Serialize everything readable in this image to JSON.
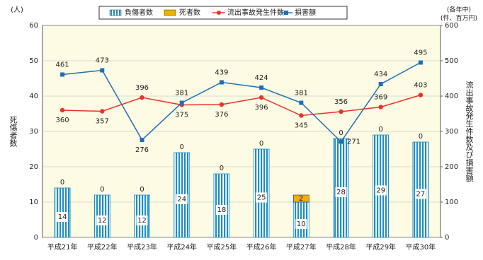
{
  "chart_data": {
    "type": "bar-line",
    "y_label": "死傷者数",
    "y_unit": "(人)",
    "y2_label": "流出事故発生件数及び損害額",
    "y2_unit_1": "(各年中)",
    "y2_unit_2": "(件、百万円)",
    "categories": [
      "平成21年",
      "平成22年",
      "平成23年",
      "平成24年",
      "平成25年",
      "平成26年",
      "平成27年",
      "平成28年",
      "平成29年",
      "平成30年"
    ],
    "series": [
      {
        "name": "負傷者数",
        "type": "bar",
        "color": "#1f8fc4",
        "values": [
          14,
          12,
          12,
          24,
          18,
          25,
          10,
          28,
          29,
          27
        ]
      },
      {
        "name": "死者数",
        "type": "bar",
        "color": "#f0b000",
        "values": [
          0,
          0,
          0,
          0,
          0,
          0,
          2,
          0,
          0,
          0
        ]
      },
      {
        "name": "流出事故発生件数",
        "type": "line",
        "axis": "y2",
        "color": "#e8332a",
        "values": [
          360,
          357,
          396,
          375,
          376,
          396,
          345,
          356,
          369,
          403
        ]
      },
      {
        "name": "損害額",
        "type": "line",
        "axis": "y2",
        "color": "#1f6fb5",
        "values": [
          461,
          473,
          276,
          381,
          439,
          424,
          381,
          271,
          434,
          495
        ]
      }
    ],
    "ylim": [
      0,
      60
    ],
    "yticks": [
      0,
      10,
      20,
      30,
      40,
      50,
      60
    ],
    "y2lim": [
      0,
      600
    ],
    "y2ticks": [
      0,
      100,
      200,
      300,
      400,
      500,
      600
    ],
    "grid": true
  }
}
